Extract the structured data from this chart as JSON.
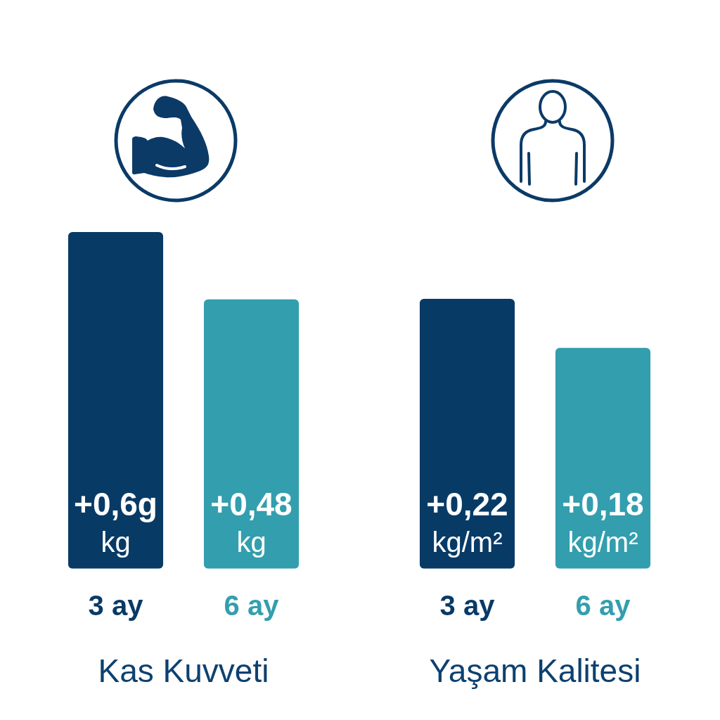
{
  "chart_data": [
    {
      "type": "bar",
      "xlabel": "Kas Kuvveti",
      "categories": [
        "3 ay",
        "6 ay"
      ],
      "values": [
        0.6,
        0.48
      ],
      "colors": [
        "#083a66",
        "#339eae"
      ],
      "value_labels": [
        "+0,6g kg",
        "+0,48 kg"
      ],
      "tick_labels": "x"
    },
    {
      "type": "bar",
      "xlabel": "Yaşam Kalitesi",
      "categories": [
        "3 ay",
        "6 ay"
      ],
      "values": [
        0.22,
        0.18
      ],
      "colors": [
        "#083a66",
        "#339eae"
      ],
      "value_labels": [
        "+0,22 kg/m²",
        "+0,18 kg/m²"
      ],
      "tick_labels": "x"
    }
  ]
}
